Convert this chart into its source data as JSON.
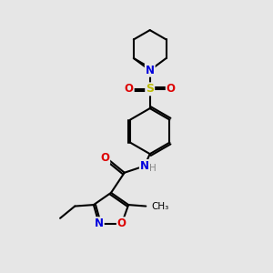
{
  "bg_color": "#e6e6e6",
  "bond_color": "#000000",
  "bond_width": 1.5,
  "atom_colors": {
    "N": "#0000dd",
    "O": "#dd0000",
    "S": "#bbbb00",
    "H": "#888888",
    "C": "#000000"
  },
  "font_size_atom": 8.5,
  "font_size_h": 7.5,
  "font_size_methyl": 7.5
}
